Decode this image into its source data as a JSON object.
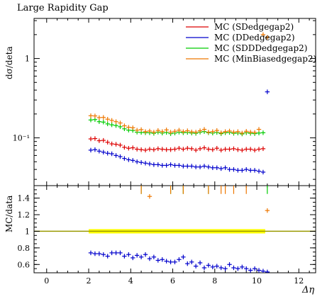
{
  "chart_data": [
    {
      "panel": "main",
      "type": "scatter",
      "title": "Large Rapidity Gap",
      "ylabel": "dσ/deta",
      "yscale": "log",
      "ylim": [
        0.025,
        3.2
      ],
      "xlim": [
        -0.6,
        12.8
      ],
      "yticks": [
        {
          "value": 1,
          "label": "1"
        },
        {
          "value": 0.1,
          "label": "10⁻¹"
        }
      ],
      "legend_position": "top-right",
      "series": [
        {
          "name": "MC (SDedgegap2)",
          "color": "#dd0000",
          "x": [
            2.1,
            2.3,
            2.5,
            2.7,
            2.9,
            3.1,
            3.3,
            3.5,
            3.7,
            3.9,
            4.1,
            4.3,
            4.5,
            4.7,
            4.9,
            5.1,
            5.3,
            5.5,
            5.7,
            5.9,
            6.1,
            6.3,
            6.5,
            6.7,
            6.9,
            7.1,
            7.3,
            7.5,
            7.7,
            7.9,
            8.1,
            8.3,
            8.5,
            8.7,
            8.9,
            9.1,
            9.3,
            9.5,
            9.7,
            9.9,
            10.1,
            10.3
          ],
          "y": [
            0.097,
            0.098,
            0.092,
            0.093,
            0.088,
            0.084,
            0.083,
            0.081,
            0.076,
            0.074,
            0.075,
            0.072,
            0.071,
            0.07,
            0.072,
            0.071,
            0.073,
            0.072,
            0.071,
            0.071,
            0.072,
            0.074,
            0.072,
            0.074,
            0.073,
            0.07,
            0.073,
            0.075,
            0.072,
            0.071,
            0.074,
            0.07,
            0.072,
            0.072,
            0.073,
            0.071,
            0.07,
            0.072,
            0.072,
            0.07,
            0.072,
            0.073
          ]
        },
        {
          "name": "MC (DDedgegap2)",
          "color": "#0000cc",
          "x": [
            2.1,
            2.3,
            2.5,
            2.7,
            2.9,
            3.1,
            3.3,
            3.5,
            3.7,
            3.9,
            4.1,
            4.3,
            4.5,
            4.7,
            4.9,
            5.1,
            5.3,
            5.5,
            5.7,
            5.9,
            6.1,
            6.3,
            6.5,
            6.7,
            6.9,
            7.1,
            7.3,
            7.5,
            7.7,
            7.9,
            8.1,
            8.3,
            8.5,
            8.7,
            8.9,
            9.1,
            9.3,
            9.5,
            9.7,
            9.9,
            10.1,
            10.3,
            10.5
          ],
          "y": [
            0.07,
            0.071,
            0.068,
            0.066,
            0.064,
            0.063,
            0.06,
            0.058,
            0.055,
            0.053,
            0.052,
            0.05,
            0.049,
            0.048,
            0.047,
            0.046,
            0.046,
            0.045,
            0.045,
            0.046,
            0.045,
            0.045,
            0.044,
            0.044,
            0.044,
            0.043,
            0.043,
            0.044,
            0.043,
            0.042,
            0.042,
            0.041,
            0.042,
            0.04,
            0.04,
            0.039,
            0.039,
            0.04,
            0.039,
            0.039,
            0.038,
            0.037,
            0.38
          ]
        },
        {
          "name": "MC (SDDDedgegap2)",
          "color": "#00cc00",
          "x": [
            2.1,
            2.3,
            2.5,
            2.7,
            2.9,
            3.1,
            3.3,
            3.5,
            3.7,
            3.9,
            4.1,
            4.3,
            4.5,
            4.7,
            4.9,
            5.1,
            5.3,
            5.5,
            5.7,
            5.9,
            6.1,
            6.3,
            6.5,
            6.7,
            6.9,
            7.1,
            7.3,
            7.5,
            7.7,
            7.9,
            8.1,
            8.3,
            8.5,
            8.7,
            8.9,
            9.1,
            9.3,
            9.5,
            9.7,
            9.9,
            10.1,
            10.3
          ],
          "y": [
            0.168,
            0.17,
            0.16,
            0.158,
            0.15,
            0.146,
            0.143,
            0.138,
            0.13,
            0.125,
            0.124,
            0.118,
            0.117,
            0.116,
            0.116,
            0.114,
            0.118,
            0.115,
            0.117,
            0.113,
            0.115,
            0.118,
            0.116,
            0.117,
            0.115,
            0.114,
            0.118,
            0.12,
            0.116,
            0.115,
            0.117,
            0.113,
            0.116,
            0.117,
            0.114,
            0.115,
            0.112,
            0.116,
            0.114,
            0.113,
            0.115,
            0.116
          ]
        },
        {
          "name": "MC (MinBiasedgegap2)",
          "color": "#ee7700",
          "x": [
            2.1,
            2.3,
            2.5,
            2.7,
            2.9,
            3.1,
            3.3,
            3.5,
            3.7,
            3.9,
            4.1,
            4.3,
            4.5,
            4.7,
            4.9,
            5.1,
            5.3,
            5.5,
            5.7,
            5.9,
            6.1,
            6.3,
            6.5,
            6.7,
            6.9,
            7.1,
            7.3,
            7.5,
            7.7,
            7.9,
            8.1,
            8.3,
            8.5,
            8.7,
            8.9,
            9.1,
            9.3,
            9.5,
            9.7,
            9.9,
            10.1,
            10.3,
            10.5
          ],
          "y": [
            0.19,
            0.189,
            0.18,
            0.181,
            0.172,
            0.166,
            0.16,
            0.154,
            0.142,
            0.136,
            0.134,
            0.125,
            0.127,
            0.12,
            0.122,
            0.118,
            0.124,
            0.12,
            0.126,
            0.118,
            0.121,
            0.125,
            0.12,
            0.123,
            0.119,
            0.118,
            0.123,
            0.128,
            0.118,
            0.12,
            0.124,
            0.116,
            0.12,
            0.122,
            0.118,
            0.12,
            0.115,
            0.121,
            0.118,
            0.117,
            0.128,
            2.0,
            1.85
          ]
        }
      ]
    },
    {
      "panel": "ratio",
      "type": "scatter",
      "ylabel": "MC/data",
      "xlabel": "Δη",
      "ylim": [
        0.5,
        1.55
      ],
      "xlim": [
        -0.6,
        12.8
      ],
      "yticks": [
        0.6,
        0.8,
        1,
        1.2,
        1.4
      ],
      "xticks": [
        0,
        2,
        4,
        6,
        8,
        10,
        12
      ],
      "reference_line": 1,
      "reference_color": "#999900",
      "band": {
        "x": [
          2.0,
          10.4
        ],
        "y": [
          0.974,
          1.026
        ],
        "color": "#ffff00"
      },
      "series": [
        {
          "name": "MC (DDedgegap2)",
          "color": "#0000cc",
          "x": [
            2.1,
            2.3,
            2.5,
            2.7,
            2.9,
            3.1,
            3.3,
            3.5,
            3.7,
            3.9,
            4.1,
            4.3,
            4.5,
            4.7,
            4.9,
            5.1,
            5.3,
            5.5,
            5.7,
            5.9,
            6.1,
            6.3,
            6.5,
            6.7,
            6.9,
            7.1,
            7.3,
            7.5,
            7.7,
            7.9,
            8.1,
            8.3,
            8.5,
            8.7,
            8.9,
            9.1,
            9.3,
            9.5,
            9.7,
            9.9,
            10.1,
            10.3,
            10.5
          ],
          "y": [
            0.74,
            0.73,
            0.73,
            0.72,
            0.7,
            0.74,
            0.74,
            0.74,
            0.7,
            0.72,
            0.68,
            0.71,
            0.69,
            0.72,
            0.67,
            0.69,
            0.65,
            0.66,
            0.64,
            0.63,
            0.63,
            0.66,
            0.69,
            0.61,
            0.63,
            0.58,
            0.62,
            0.56,
            0.59,
            0.57,
            0.58,
            0.56,
            0.55,
            0.6,
            0.56,
            0.55,
            0.57,
            0.55,
            0.53,
            0.55,
            0.53,
            0.52,
            0.51
          ]
        },
        {
          "name": "MC (SDDDedgegap2)",
          "color": "#00cc00",
          "x": [
            4.5,
            5.9,
            6.5,
            7.7,
            10.5
          ],
          "y": [
            1.52,
            1.51,
            1.51,
            1.51,
            1.52
          ]
        },
        {
          "name": "MC (MinBiasedgegap2)",
          "color": "#ee7700",
          "x": [
            4.5,
            4.9,
            5.9,
            6.5,
            7.7,
            8.3,
            8.5,
            8.9,
            9.5,
            10.5
          ],
          "y": [
            1.52,
            1.42,
            1.52,
            1.52,
            1.48,
            1.46,
            1.52,
            1.52,
            1.46,
            1.25
          ]
        }
      ]
    }
  ],
  "legend_labels": [
    "MC (SDedgegap2)",
    "MC (DDedgegap2)",
    "MC (SDDDedgegap2)",
    "MC (MinBiasedgegap2)"
  ]
}
